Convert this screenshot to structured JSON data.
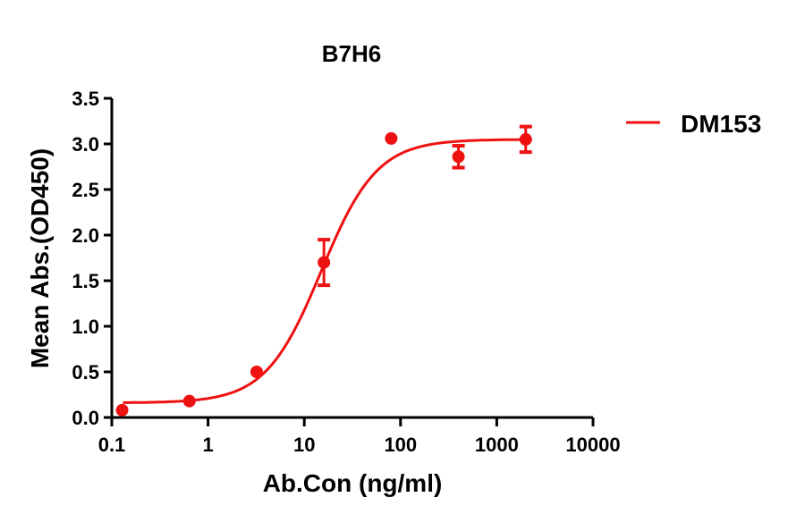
{
  "chart_data": {
    "type": "scatter",
    "title": "B7H6",
    "xlabel": "Ab.Con (ng/ml)",
    "ylabel": "Mean Abs.(OD450)",
    "xscale": "log",
    "xlim": [
      0.1,
      10000
    ],
    "ylim": [
      0,
      3.5
    ],
    "x_ticks": [
      "0.1",
      "1",
      "10",
      "100",
      "1000",
      "10000"
    ],
    "y_ticks": [
      "0.0",
      "0.5",
      "1.0",
      "1.5",
      "2.0",
      "2.5",
      "3.0",
      "3.5"
    ],
    "grid": false,
    "legend_position": "right-top",
    "series": [
      {
        "name": "DM153",
        "color": "#ee1111",
        "fit": "4PL sigmoid",
        "fit_params": {
          "bottom": 0.16,
          "top": 3.05,
          "ec50": 15,
          "hill": 1.5
        },
        "x": [
          0.128,
          0.64,
          3.2,
          16,
          80,
          400,
          2000
        ],
        "y": [
          0.08,
          0.18,
          0.5,
          1.7,
          3.06,
          2.86,
          3.05
        ],
        "error": [
          0.0,
          0.0,
          0.0,
          0.25,
          0.0,
          0.12,
          0.14
        ]
      }
    ]
  },
  "title": "B7H6",
  "legend": {
    "label": "DM153"
  },
  "axes": {
    "xlabel": "Ab.Con (ng/ml)",
    "ylabel": "Mean Abs.(OD450)"
  }
}
